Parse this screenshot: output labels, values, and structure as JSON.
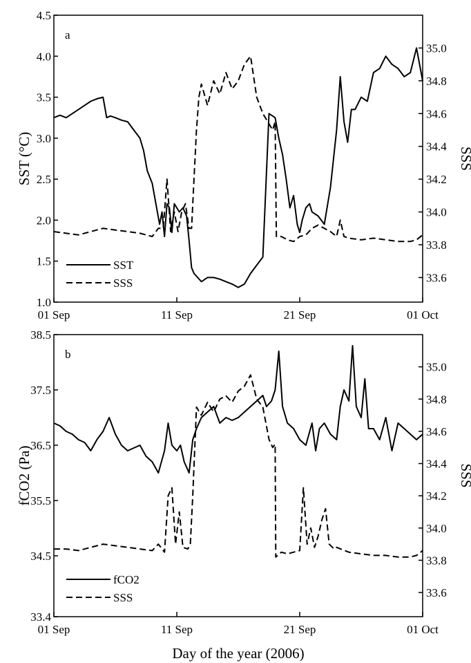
{
  "chart_data": [
    {
      "type": "line",
      "panel_label": "a",
      "ylabel": "SST (°C)",
      "y2label": "SSS",
      "x_ticks": [
        "01 Sep",
        "11 Sep",
        "21 Sep",
        "01 Oct"
      ],
      "x_tick_days": [
        0,
        10,
        20,
        30
      ],
      "xlim": [
        0,
        30
      ],
      "ylim": [
        1.0,
        4.5
      ],
      "y_ticks": [
        "1.0",
        "1.5",
        "2.0",
        "2.5",
        "3.0",
        "3.5",
        "4.0",
        "4.5"
      ],
      "y2lim": [
        33.45,
        35.2
      ],
      "y2_ticks": [
        "33.6",
        "33.8",
        "34.0",
        "34.2",
        "34.4",
        "34.6",
        "34.8",
        "35.0"
      ],
      "legend": [
        "SST",
        "SSS"
      ],
      "legend_position": "bottom-left",
      "series": [
        {
          "name": "SST",
          "axis": "left",
          "style": "solid",
          "x": [
            0,
            0.5,
            1,
            1.5,
            2,
            2.5,
            3,
            3.5,
            4,
            4.3,
            4.6,
            5,
            5.5,
            6,
            6.5,
            7,
            7.3,
            7.6,
            8,
            8.3,
            8.6,
            8.8,
            9.0,
            9.2,
            9.4,
            9.6,
            9.8,
            10.0,
            10.2,
            10.5,
            10.8,
            11.0,
            11.2,
            11.4,
            11.7,
            12.0,
            12.5,
            13,
            13.5,
            14,
            14.5,
            15,
            15.5,
            16,
            16.5,
            17,
            17.5,
            18,
            18.3,
            18.6,
            18.9,
            19.2,
            19.5,
            19.8,
            20.0,
            20.2,
            20.5,
            20.8,
            21.0,
            21.5,
            22.0,
            22.5,
            23.0,
            23.3,
            23.6,
            23.9,
            24.2,
            24.5,
            25,
            25.5,
            26,
            26.5,
            27,
            27.5,
            28,
            28.5,
            29,
            29.5,
            30
          ],
          "y": [
            3.25,
            3.28,
            3.25,
            3.3,
            3.35,
            3.4,
            3.45,
            3.48,
            3.5,
            3.25,
            3.27,
            3.25,
            3.22,
            3.2,
            3.1,
            3.0,
            2.85,
            2.6,
            2.45,
            2.2,
            1.95,
            2.1,
            1.8,
            2.2,
            2.15,
            1.85,
            2.2,
            2.15,
            2.1,
            2.15,
            2.05,
            1.75,
            1.42,
            1.35,
            1.3,
            1.25,
            1.3,
            1.3,
            1.28,
            1.25,
            1.22,
            1.18,
            1.22,
            1.35,
            1.45,
            1.55,
            3.3,
            3.25,
            3.0,
            2.8,
            2.5,
            2.15,
            2.3,
            1.95,
            1.85,
            2.0,
            2.15,
            2.2,
            2.1,
            2.05,
            1.95,
            2.4,
            3.1,
            3.75,
            3.2,
            2.95,
            3.35,
            3.35,
            3.5,
            3.45,
            3.8,
            3.85,
            4.0,
            3.9,
            3.85,
            3.75,
            3.8,
            4.1,
            3.7
          ]
        },
        {
          "name": "SSS",
          "axis": "right",
          "style": "dashed",
          "x": [
            0,
            1,
            2,
            3,
            4,
            5,
            6,
            7,
            8,
            8.5,
            8.9,
            9.2,
            9.5,
            9.8,
            10.1,
            10.4,
            10.7,
            11.0,
            11.2,
            11.4,
            11.6,
            11.8,
            12.0,
            12.5,
            13,
            13.5,
            14,
            14.5,
            15,
            15.5,
            16,
            16.5,
            17,
            17.4,
            17.8,
            18.0,
            18.1,
            18.5,
            19,
            19.5,
            20,
            20.5,
            21,
            21.5,
            22,
            22.5,
            23,
            23.3,
            23.6,
            24,
            25,
            26,
            27,
            28,
            29,
            29.5,
            30
          ],
          "y": [
            33.88,
            33.87,
            33.86,
            33.88,
            33.9,
            33.89,
            33.88,
            33.87,
            33.85,
            33.9,
            33.9,
            34.2,
            33.88,
            34.0,
            33.88,
            34.0,
            34.05,
            33.9,
            33.9,
            34.2,
            34.5,
            34.7,
            34.78,
            34.65,
            34.8,
            34.72,
            34.85,
            34.75,
            34.8,
            34.9,
            34.95,
            34.7,
            34.6,
            34.55,
            34.5,
            34.55,
            33.85,
            33.85,
            33.83,
            33.82,
            33.85,
            33.86,
            33.9,
            33.92,
            33.9,
            33.88,
            33.85,
            33.95,
            33.85,
            33.84,
            33.83,
            33.84,
            33.83,
            33.82,
            33.82,
            33.83,
            33.86
          ]
        }
      ]
    },
    {
      "type": "line",
      "panel_label": "b",
      "ylabel": "fCO2 (Pa)",
      "y2label": "SSS",
      "xlabel": "Day of the year (2006)",
      "x_ticks": [
        "01 Sep",
        "11 Sep",
        "21 Sep",
        "01 Oct"
      ],
      "x_tick_days": [
        0,
        10,
        20,
        30
      ],
      "xlim": [
        0,
        30
      ],
      "ylim": [
        33.4,
        38.5
      ],
      "y_ticks": [
        "33.4",
        "34.5",
        "35.5",
        "36.5",
        "37.5",
        "38.5"
      ],
      "y2lim": [
        33.45,
        35.2
      ],
      "y2_ticks": [
        "33.6",
        "33.8",
        "34.0",
        "34.2",
        "34.4",
        "34.6",
        "34.8",
        "35.0"
      ],
      "legend": [
        "fCO2",
        "SSS"
      ],
      "legend_position": "bottom-left",
      "series": [
        {
          "name": "fCO2",
          "axis": "left",
          "style": "solid",
          "x": [
            0,
            0.5,
            1,
            1.5,
            2,
            2.5,
            3,
            3.5,
            4,
            4.5,
            5,
            5.5,
            6,
            6.5,
            7,
            7.5,
            8,
            8.5,
            9,
            9.3,
            9.6,
            10,
            10.3,
            10.6,
            11.0,
            11.3,
            11.6,
            12,
            12.5,
            13,
            13.5,
            14,
            14.5,
            15,
            15.5,
            16,
            16.5,
            17,
            17.3,
            17.7,
            18.0,
            18.3,
            18.6,
            19,
            19.5,
            20,
            20.5,
            21,
            21.3,
            21.6,
            22,
            22.5,
            23,
            23.3,
            23.6,
            24,
            24.3,
            24.6,
            25,
            25.3,
            25.6,
            26,
            26.5,
            27,
            27.5,
            28,
            28.5,
            29,
            29.5,
            30
          ],
          "y": [
            36.9,
            36.85,
            36.75,
            36.7,
            36.6,
            36.55,
            36.4,
            36.6,
            36.75,
            37.0,
            36.7,
            36.5,
            36.4,
            36.45,
            36.5,
            36.3,
            36.2,
            36.0,
            36.4,
            36.9,
            36.5,
            36.4,
            36.5,
            36.2,
            36.0,
            36.6,
            36.8,
            37.0,
            37.1,
            37.2,
            36.9,
            37.0,
            36.95,
            37.0,
            37.1,
            37.2,
            37.3,
            37.4,
            37.2,
            37.3,
            37.5,
            38.2,
            37.2,
            36.9,
            36.8,
            36.6,
            36.5,
            36.9,
            36.4,
            36.8,
            36.9,
            36.7,
            36.6,
            37.2,
            37.5,
            37.3,
            38.3,
            37.2,
            37.0,
            37.7,
            36.8,
            36.8,
            36.6,
            37.0,
            36.4,
            36.9,
            36.8,
            36.7,
            36.6,
            36.7
          ]
        },
        {
          "name": "SSS",
          "axis": "right",
          "style": "dashed",
          "x": [
            0,
            1,
            2,
            3,
            4,
            5,
            6,
            7,
            8,
            8.5,
            9,
            9.3,
            9.6,
            9.9,
            10.2,
            10.5,
            10.9,
            11.1,
            11.3,
            11.6,
            12,
            12.5,
            13,
            13.5,
            14,
            14.5,
            15,
            15.5,
            16,
            16.5,
            17,
            17.5,
            17.8,
            18.0,
            18.05,
            18.5,
            19,
            19.5,
            20,
            20.3,
            20.6,
            20.9,
            21.2,
            21.5,
            21.8,
            22.1,
            22.4,
            22.8,
            23,
            24,
            25,
            26,
            27,
            28,
            29,
            29.5,
            30
          ],
          "y": [
            33.87,
            33.87,
            33.86,
            33.88,
            33.9,
            33.89,
            33.88,
            33.87,
            33.86,
            33.9,
            33.85,
            34.2,
            34.25,
            33.9,
            34.1,
            33.88,
            33.87,
            33.9,
            34.2,
            34.75,
            34.7,
            34.78,
            34.72,
            34.8,
            34.82,
            34.78,
            34.85,
            34.88,
            34.95,
            34.8,
            34.75,
            34.55,
            34.5,
            34.52,
            33.82,
            33.85,
            33.84,
            33.85,
            33.86,
            34.25,
            33.9,
            34.0,
            33.88,
            33.95,
            34.05,
            34.12,
            33.9,
            33.87,
            33.88,
            33.85,
            33.84,
            33.83,
            33.83,
            33.82,
            33.82,
            33.83,
            33.86
          ]
        }
      ]
    }
  ]
}
